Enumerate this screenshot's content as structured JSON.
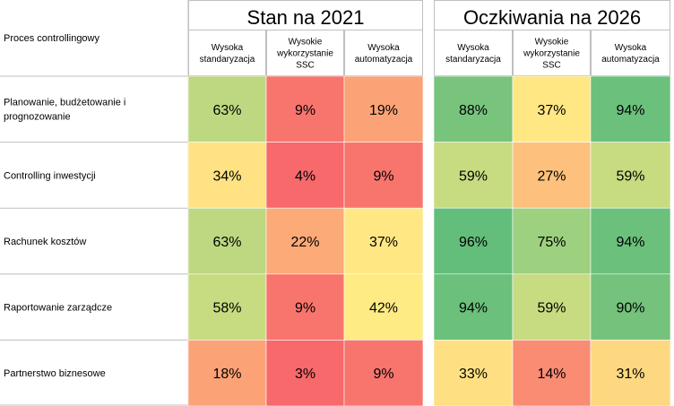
{
  "chart_data": {
    "type": "heatmap",
    "row_header": "Proces controllingowy",
    "groups": [
      {
        "title": "Stan na 2021",
        "columns": [
          "Wysoka\nstandaryzacja",
          "Wysokie\nwykorzystanie\nSSC",
          "Wysoka\nautomatyzacja"
        ],
        "values": [
          [
            "63%",
            "9%",
            "19%"
          ],
          [
            "34%",
            "4%",
            "9%"
          ],
          [
            "63%",
            "22%",
            "37%"
          ],
          [
            "58%",
            "9%",
            "42%"
          ],
          [
            "18%",
            "3%",
            "9%"
          ]
        ],
        "colors": [
          [
            "#bdd881",
            "#f8756d",
            "#fba377"
          ],
          [
            "#fee283",
            "#f8696b",
            "#f8756d"
          ],
          [
            "#bdd881",
            "#fbaa78",
            "#ffe884"
          ],
          [
            "#c7db81",
            "#f8756d",
            "#feeb84"
          ],
          [
            "#fba277",
            "#f8696b",
            "#f8756d"
          ]
        ]
      },
      {
        "title": "Oczkiwania na 2026",
        "columns": [
          "Wysoka\nstandaryzacja",
          "Wysokie\nwykorzystanie\nSSC",
          "Wysoka\nautomatyzacja"
        ],
        "values": [
          [
            "88%",
            "37%",
            "94%"
          ],
          [
            "59%",
            "27%",
            "59%"
          ],
          [
            "96%",
            "75%",
            "94%"
          ],
          [
            "94%",
            "59%",
            "90%"
          ],
          [
            "33%",
            "14%",
            "31%"
          ]
        ],
        "colors": [
          [
            "#78c47d",
            "#ffe884",
            "#6bc07c"
          ],
          [
            "#c7db81",
            "#fdc17d",
            "#c7db81"
          ],
          [
            "#63be7b",
            "#9dd07f",
            "#6bc07c"
          ],
          [
            "#6bc07c",
            "#c7db81",
            "#74c27c"
          ],
          [
            "#fee082",
            "#fa8c73",
            "#fed880"
          ]
        ]
      }
    ],
    "rows": [
      "Planowanie, budżetowanie i\nprognozowanie",
      "Controlling inwestycji",
      "Rachunek kosztów",
      "Raportowanie zarządcze",
      "Partnerstwo biznesowe"
    ]
  }
}
